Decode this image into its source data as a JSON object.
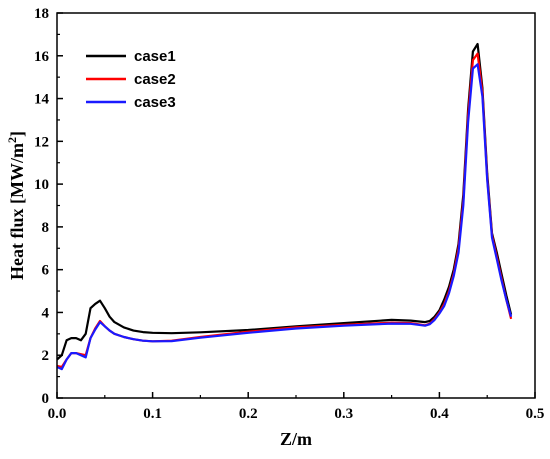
{
  "chart_data": {
    "type": "line",
    "title": "",
    "xlabel": "Z/m",
    "ylabel": "Heat flux [MW/m",
    "ylabel_sup": "2",
    "ylabel_end": "]",
    "xlim": [
      0,
      0.5
    ],
    "ylim": [
      0,
      18
    ],
    "x_ticks": [
      "0.0",
      "0.1",
      "0.2",
      "0.3",
      "0.4",
      "0.5"
    ],
    "y_ticks": [
      "0",
      "2",
      "4",
      "6",
      "8",
      "10",
      "12",
      "14",
      "16",
      "18"
    ],
    "grid": false,
    "legend_position": "top-left",
    "series": [
      {
        "name": "case1",
        "color": "#000000",
        "points": [
          [
            0,
            1.8
          ],
          [
            0.005,
            2.0
          ],
          [
            0.01,
            2.7
          ],
          [
            0.015,
            2.8
          ],
          [
            0.02,
            2.8
          ],
          [
            0.025,
            2.7
          ],
          [
            0.03,
            3.0
          ],
          [
            0.035,
            4.2
          ],
          [
            0.04,
            4.4
          ],
          [
            0.045,
            4.55
          ],
          [
            0.05,
            4.2
          ],
          [
            0.055,
            3.8
          ],
          [
            0.06,
            3.55
          ],
          [
            0.07,
            3.3
          ],
          [
            0.08,
            3.15
          ],
          [
            0.09,
            3.08
          ],
          [
            0.1,
            3.05
          ],
          [
            0.12,
            3.03
          ],
          [
            0.15,
            3.07
          ],
          [
            0.2,
            3.18
          ],
          [
            0.25,
            3.35
          ],
          [
            0.3,
            3.5
          ],
          [
            0.35,
            3.65
          ],
          [
            0.37,
            3.62
          ],
          [
            0.385,
            3.55
          ],
          [
            0.39,
            3.6
          ],
          [
            0.395,
            3.8
          ],
          [
            0.4,
            4.1
          ],
          [
            0.405,
            4.6
          ],
          [
            0.41,
            5.2
          ],
          [
            0.415,
            6.0
          ],
          [
            0.42,
            7.2
          ],
          [
            0.425,
            9.5
          ],
          [
            0.43,
            13.5
          ],
          [
            0.435,
            16.2
          ],
          [
            0.44,
            16.55
          ],
          [
            0.445,
            14.5
          ],
          [
            0.45,
            10.5
          ],
          [
            0.455,
            7.7
          ],
          [
            0.46,
            6.8
          ],
          [
            0.465,
            5.8
          ],
          [
            0.47,
            4.8
          ],
          [
            0.475,
            3.9
          ]
        ]
      },
      {
        "name": "case2",
        "color": "#ff0000",
        "points": [
          [
            0,
            1.5
          ],
          [
            0.005,
            1.45
          ],
          [
            0.01,
            1.8
          ],
          [
            0.015,
            2.1
          ],
          [
            0.02,
            2.1
          ],
          [
            0.025,
            2.05
          ],
          [
            0.03,
            2.0
          ],
          [
            0.035,
            2.8
          ],
          [
            0.04,
            3.25
          ],
          [
            0.045,
            3.6
          ],
          [
            0.05,
            3.35
          ],
          [
            0.055,
            3.15
          ],
          [
            0.06,
            3.0
          ],
          [
            0.07,
            2.85
          ],
          [
            0.08,
            2.75
          ],
          [
            0.09,
            2.68
          ],
          [
            0.1,
            2.65
          ],
          [
            0.12,
            2.68
          ],
          [
            0.15,
            2.85
          ],
          [
            0.2,
            3.1
          ],
          [
            0.25,
            3.3
          ],
          [
            0.3,
            3.42
          ],
          [
            0.35,
            3.52
          ],
          [
            0.37,
            3.5
          ],
          [
            0.385,
            3.4
          ],
          [
            0.39,
            3.48
          ],
          [
            0.395,
            3.7
          ],
          [
            0.4,
            4.0
          ],
          [
            0.405,
            4.4
          ],
          [
            0.41,
            5.0
          ],
          [
            0.415,
            5.8
          ],
          [
            0.42,
            7.0
          ],
          [
            0.425,
            9.2
          ],
          [
            0.43,
            13.2
          ],
          [
            0.435,
            15.8
          ],
          [
            0.44,
            16.1
          ],
          [
            0.445,
            14.3
          ],
          [
            0.45,
            10.3
          ],
          [
            0.455,
            7.6
          ],
          [
            0.46,
            6.6
          ],
          [
            0.465,
            5.6
          ],
          [
            0.47,
            4.6
          ],
          [
            0.475,
            3.7
          ]
        ]
      },
      {
        "name": "case3",
        "color": "#1a1aff",
        "points": [
          [
            0,
            1.45
          ],
          [
            0.005,
            1.35
          ],
          [
            0.01,
            1.8
          ],
          [
            0.015,
            2.1
          ],
          [
            0.02,
            2.1
          ],
          [
            0.025,
            2.0
          ],
          [
            0.03,
            1.9
          ],
          [
            0.035,
            2.8
          ],
          [
            0.04,
            3.2
          ],
          [
            0.045,
            3.55
          ],
          [
            0.05,
            3.35
          ],
          [
            0.055,
            3.15
          ],
          [
            0.06,
            3.0
          ],
          [
            0.07,
            2.85
          ],
          [
            0.08,
            2.75
          ],
          [
            0.09,
            2.68
          ],
          [
            0.1,
            2.65
          ],
          [
            0.12,
            2.66
          ],
          [
            0.15,
            2.82
          ],
          [
            0.2,
            3.05
          ],
          [
            0.25,
            3.25
          ],
          [
            0.3,
            3.38
          ],
          [
            0.35,
            3.48
          ],
          [
            0.37,
            3.47
          ],
          [
            0.385,
            3.38
          ],
          [
            0.39,
            3.45
          ],
          [
            0.395,
            3.65
          ],
          [
            0.4,
            3.95
          ],
          [
            0.405,
            4.3
          ],
          [
            0.41,
            4.9
          ],
          [
            0.415,
            5.7
          ],
          [
            0.42,
            6.8
          ],
          [
            0.425,
            9.0
          ],
          [
            0.43,
            12.9
          ],
          [
            0.435,
            15.4
          ],
          [
            0.44,
            15.6
          ],
          [
            0.445,
            14.1
          ],
          [
            0.45,
            10.2
          ],
          [
            0.455,
            7.5
          ],
          [
            0.46,
            6.5
          ],
          [
            0.465,
            5.5
          ],
          [
            0.47,
            4.6
          ],
          [
            0.475,
            3.8
          ]
        ]
      }
    ]
  }
}
